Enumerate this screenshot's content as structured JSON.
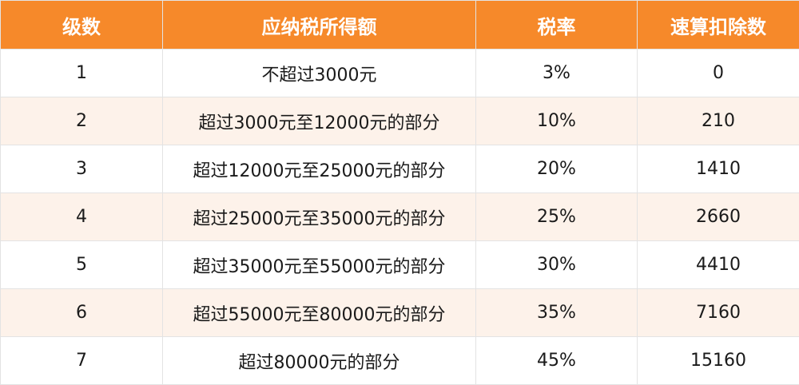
{
  "table": {
    "headers": [
      "级数",
      "应纳税所得额",
      "税率",
      "速算扣除数"
    ],
    "rows": [
      [
        "1",
        "不超过3000元",
        "3%",
        "0"
      ],
      [
        "2",
        "超过3000元至12000元的部分",
        "10%",
        "210"
      ],
      [
        "3",
        "超过12000元至25000元的部分",
        "20%",
        "1410"
      ],
      [
        "4",
        "超过25000元至35000元的部分",
        "25%",
        "2660"
      ],
      [
        "5",
        "超过35000元至55000元的部分",
        "30%",
        "4410"
      ],
      [
        "6",
        "超过55000元至80000元的部分",
        "35%",
        "7160"
      ],
      [
        "7",
        "超过80000元的部分",
        "45%",
        "15160"
      ]
    ]
  },
  "colors": {
    "header_bg": "#f6892a",
    "header_text": "#ffffff",
    "stripe_bg": "#fdf2ea",
    "row_bg": "#ffffff",
    "border": "#e3e3e3"
  }
}
